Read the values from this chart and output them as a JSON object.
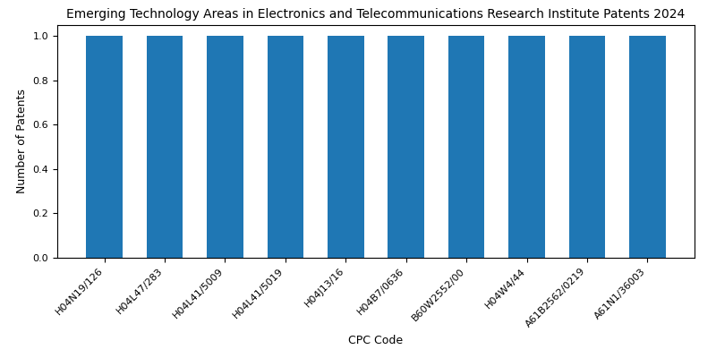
{
  "title": "Emerging Technology Areas in Electronics and Telecommunications Research Institute Patents 2024",
  "xlabel": "CPC Code",
  "ylabel": "Number of Patents",
  "categories": [
    "H04N19/126",
    "H04L47/283",
    "H04L41/5009",
    "H04L41/5019",
    "H04J13/16",
    "H04B7/0636",
    "B60W2552/00",
    "H04W4/44",
    "A61B2562/0219",
    "A61N1/36003"
  ],
  "values": [
    1,
    1,
    1,
    1,
    1,
    1,
    1,
    1,
    1,
    1
  ],
  "bar_color": "#1f77b4",
  "ylim": [
    0,
    1.05
  ],
  "yticks": [
    0.0,
    0.2,
    0.4,
    0.6,
    0.8,
    1.0
  ],
  "title_fontsize": 10,
  "label_fontsize": 9,
  "tick_fontsize": 8,
  "bar_width": 0.6
}
